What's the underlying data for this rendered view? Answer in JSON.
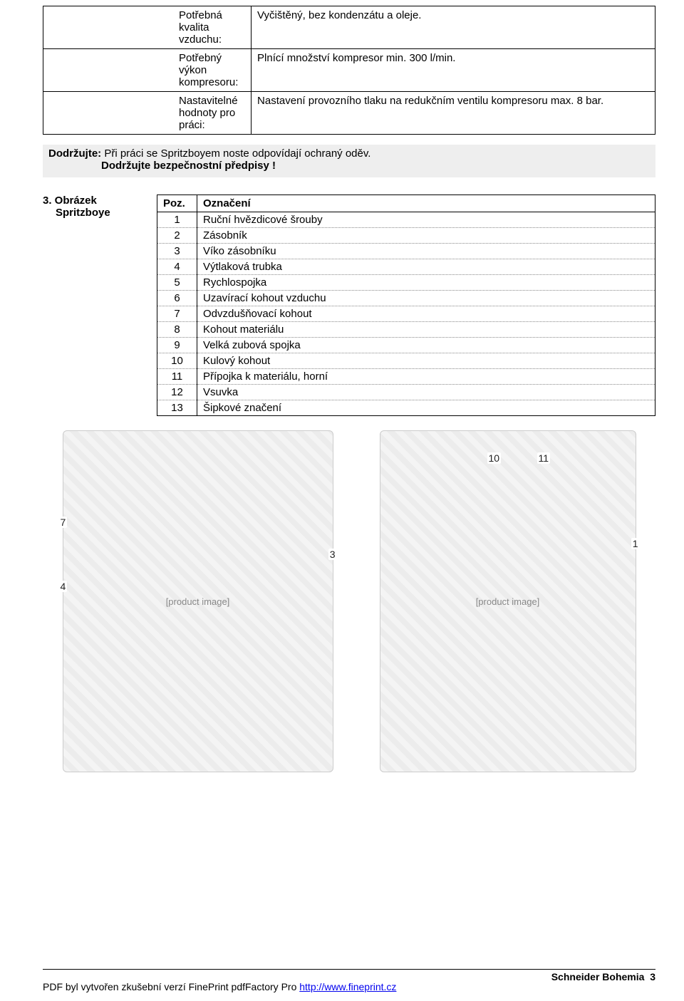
{
  "spec_rows": [
    {
      "label": "Potřebná kvalita vzduchu:",
      "value": "Vyčištěný, bez kondenzátu a oleje."
    },
    {
      "label": "Potřebný výkon kompresoru:",
      "value": "Plnící množství kompresor min. 300 l/min."
    },
    {
      "label": "Nastavitelné hodnoty pro práci:",
      "value": "Nastavení provozního tlaku na redukčním ventilu kompresoru max. 8 bar."
    }
  ],
  "note": {
    "prefix": "Dodržujte:",
    "text1": " Při práci se Spritzboyem noste odpovídají ochraný oděv.",
    "text2": "Dodržujte bezpečnostní předpisy !"
  },
  "section": {
    "number": "3. Obrázek",
    "subtitle": "Spritzboye"
  },
  "parts_table": {
    "headers": {
      "poz": "Poz.",
      "name": "Označení"
    },
    "rows": [
      {
        "poz": "1",
        "name": "Ruční hvězdicové šrouby"
      },
      {
        "poz": "2",
        "name": "Zásobník"
      },
      {
        "poz": "3",
        "name": "Víko zásobníku"
      },
      {
        "poz": "4",
        "name": "Výtlaková trubka"
      },
      {
        "poz": "5",
        "name": "Rychlospojka"
      },
      {
        "poz": "6",
        "name": "Uzavírací kohout vzduchu"
      },
      {
        "poz": "7",
        "name": "Odvzdušňovací kohout"
      },
      {
        "poz": "8",
        "name": "Kohout materiálu"
      },
      {
        "poz": "9",
        "name": "Velká zubová spojka"
      },
      {
        "poz": "10",
        "name": "Kulový kohout"
      },
      {
        "poz": "11",
        "name": "Přípojka k materiálu, horní"
      },
      {
        "poz": "12",
        "name": "Vsuvka"
      },
      {
        "poz": "13",
        "name": "Šipkové značení"
      }
    ]
  },
  "image_callouts": {
    "left": [
      "7",
      "4",
      "3"
    ],
    "right": [
      "10",
      "11",
      "1"
    ]
  },
  "image_placeholder_text": "[product image]",
  "footer": {
    "brand": "Schneider Bohemia",
    "page": "3",
    "pdf_text": "PDF byl vytvořen zkušební verzí FinePrint pdfFactory Pro ",
    "pdf_link_text": "http://www.fineprint.cz"
  },
  "colors": {
    "note_bg": "#eeeeee",
    "border": "#000000",
    "dotted": "#888888",
    "link": "#0000ee"
  }
}
